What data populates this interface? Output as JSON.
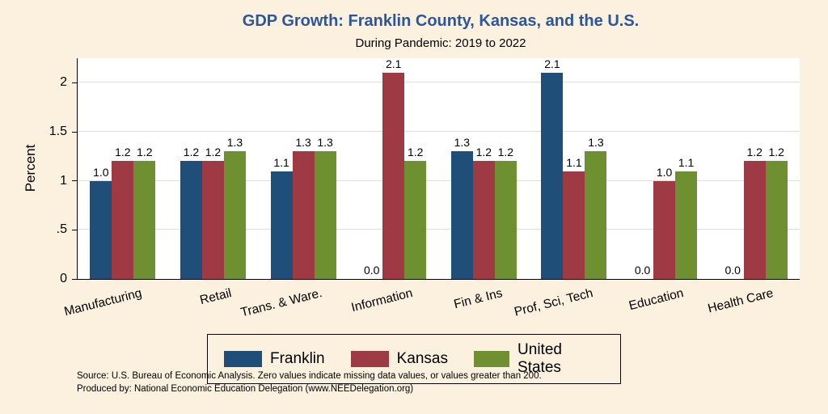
{
  "colors": {
    "background": "#FBF1DE",
    "title": "#2B569E",
    "plot_bg": "#FFFFFF",
    "axis": "#000000",
    "grid": "#DEDEDE"
  },
  "chart_data": {
    "type": "bar",
    "title": "GDP Growth: Franklin County, Kansas, and the U.S.",
    "subtitle": "During Pandemic: 2019 to 2022",
    "ylabel": "Percent",
    "xlabel": "",
    "ylim": [
      0,
      2.25
    ],
    "grid": true,
    "legend_position": "bottom",
    "yaxis": {
      "tick_values": [
        0,
        0.5,
        1,
        1.5,
        2
      ],
      "tick_labels": [
        "0",
        ".5",
        "1",
        "1.5",
        "2"
      ]
    },
    "categories": [
      "Manufacturing",
      "Retail",
      "Trans. & Ware.",
      "Information",
      "Fin & Ins",
      "Prof, Sci, Tech",
      "Education",
      "Health Care"
    ],
    "series": [
      {
        "name": "Franklin",
        "color": "#1F4E79",
        "values": [
          1.0,
          1.2,
          1.1,
          0.0,
          1.3,
          2.1,
          0.0,
          0.0
        ]
      },
      {
        "name": "Kansas",
        "color": "#9E3A44",
        "values": [
          1.2,
          1.2,
          1.3,
          2.1,
          1.2,
          1.1,
          1.0,
          1.2
        ]
      },
      {
        "name": "United States",
        "color": "#6F9030",
        "values": [
          1.2,
          1.3,
          1.3,
          1.2,
          1.2,
          1.3,
          1.1,
          1.2
        ]
      }
    ],
    "notes": [
      "Source: U.S. Bureau of Economic Analysis. Zero values indicate missing data values, or values greater than 200.",
      "Produced by: National Economic Education Delegation (www.NEEDelegation.org)"
    ]
  }
}
